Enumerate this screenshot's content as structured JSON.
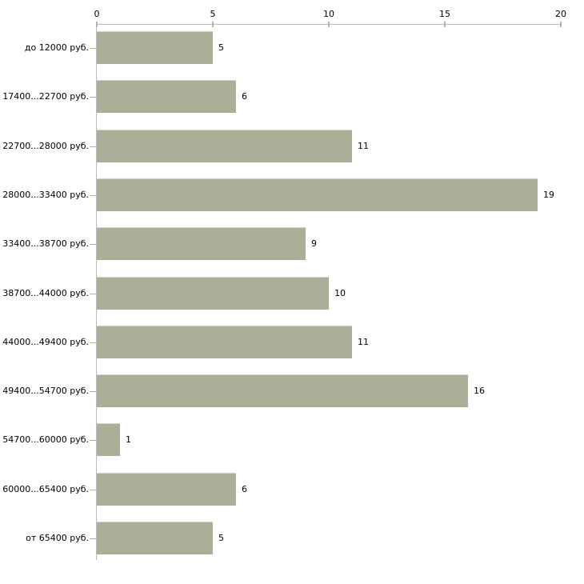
{
  "chart_data": {
    "type": "bar",
    "orientation": "horizontal",
    "title": "",
    "xlabel": "",
    "ylabel": "",
    "categories": [
      "до 12000 руб.",
      "17400...22700 руб.",
      "22700...28000 руб.",
      "28000...33400 руб.",
      "33400...38700 руб.",
      "38700...44000 руб.",
      "44000...49400 руб.",
      "49400...54700 руб.",
      "54700...60000 руб.",
      "60000...65400 руб.",
      "от 65400 руб."
    ],
    "values": [
      5,
      6,
      11,
      19,
      9,
      10,
      11,
      16,
      1,
      6,
      5
    ],
    "value_labels": [
      "5",
      "6",
      "11",
      "19",
      "9",
      "10",
      "11",
      "16",
      "1",
      "6",
      "5"
    ],
    "xlim": [
      0,
      20
    ],
    "x_ticks": [
      0,
      5,
      10,
      15,
      20
    ],
    "x_tick_labels": [
      "0",
      "5",
      "10",
      "15",
      "20"
    ],
    "x_axis_position": "top",
    "grid": "off",
    "legend": "none",
    "colors": {
      "bar_fill": "#aab097",
      "tick_mark": "#b5b68c",
      "axis_line": "#b9b9b9",
      "label_text": "#000000",
      "background": "#ffffff"
    }
  }
}
